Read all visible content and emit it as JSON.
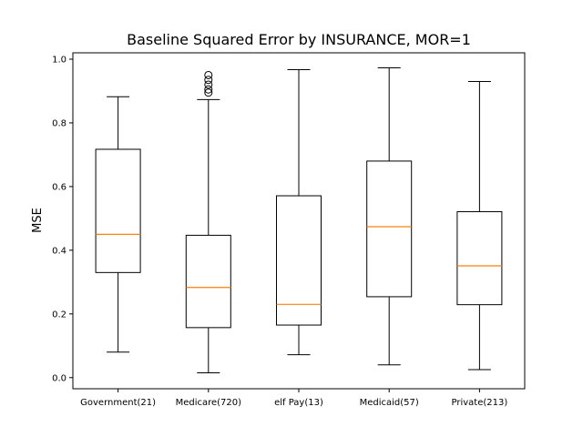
{
  "chart_data": {
    "type": "box",
    "title": "Baseline Squared Error by INSURANCE, MOR=1",
    "xlabel": "",
    "ylabel": "MSE",
    "ylim": [
      -0.035,
      1.02
    ],
    "yticks": [
      "0.0",
      "0.2",
      "0.4",
      "0.6",
      "0.8",
      "1.0"
    ],
    "ytick_values": [
      0.0,
      0.2,
      0.4,
      0.6,
      0.8,
      1.0
    ],
    "grid": false,
    "colors": {
      "box": "#000000",
      "median": "#ff7f0e",
      "frame": "#000000"
    },
    "categories": [
      "Government(21)",
      "Medicare(720)",
      "elf Pay(13)",
      "Medicaid(57)",
      "Private(213)"
    ],
    "boxes": [
      {
        "whisker_low": 0.08,
        "q1": 0.33,
        "median": 0.45,
        "q3": 0.717,
        "whisker_high": 0.882,
        "outliers": []
      },
      {
        "whisker_low": 0.015,
        "q1": 0.157,
        "median": 0.283,
        "q3": 0.447,
        "whisker_high": 0.873,
        "outliers": [
          0.895,
          0.905,
          0.92,
          0.935,
          0.95
        ]
      },
      {
        "whisker_low": 0.072,
        "q1": 0.165,
        "median": 0.23,
        "q3": 0.571,
        "whisker_high": 0.967,
        "outliers": []
      },
      {
        "whisker_low": 0.04,
        "q1": 0.254,
        "median": 0.474,
        "q3": 0.68,
        "whisker_high": 0.973,
        "outliers": []
      },
      {
        "whisker_low": 0.025,
        "q1": 0.229,
        "median": 0.351,
        "q3": 0.521,
        "whisker_high": 0.93,
        "outliers": []
      }
    ]
  }
}
